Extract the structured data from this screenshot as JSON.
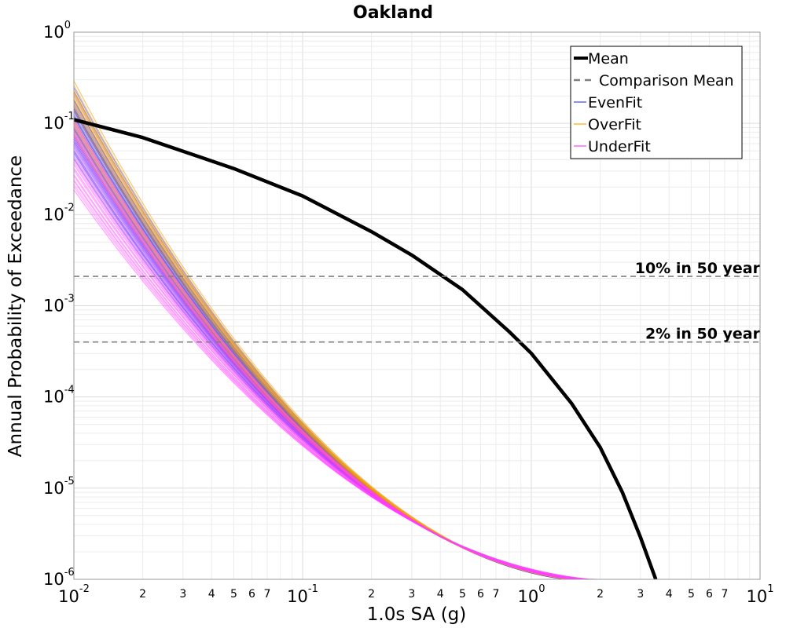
{
  "chart_data": {
    "type": "line",
    "title": "Oakland",
    "xlabel": "1.0s SA (g)",
    "ylabel": "Annual Probability of Exceedance",
    "x_scale": "log",
    "y_scale": "log",
    "xlim": [
      0.01,
      10
    ],
    "ylim": [
      1e-06,
      1
    ],
    "grid": true,
    "legend_position": "top-right",
    "x_ticks": {
      "major": [
        {
          "value": 0.01,
          "base": "10",
          "exp": "-2"
        },
        {
          "value": 0.1,
          "base": "10",
          "exp": "-1"
        },
        {
          "value": 1,
          "base": "10",
          "exp": "0"
        },
        {
          "value": 10,
          "base": "10",
          "exp": "1"
        }
      ],
      "minor": [
        {
          "value": 0.02,
          "label": "2"
        },
        {
          "value": 0.03,
          "label": "3"
        },
        {
          "value": 0.04,
          "label": "4"
        },
        {
          "value": 0.05,
          "label": "5"
        },
        {
          "value": 0.06,
          "label": "6"
        },
        {
          "value": 0.07,
          "label": "7"
        },
        {
          "value": 0.2,
          "label": "2"
        },
        {
          "value": 0.3,
          "label": "3"
        },
        {
          "value": 0.4,
          "label": "4"
        },
        {
          "value": 0.5,
          "label": "5"
        },
        {
          "value": 0.6,
          "label": "6"
        },
        {
          "value": 0.7,
          "label": "7"
        },
        {
          "value": 2,
          "label": "2"
        },
        {
          "value": 3,
          "label": "3"
        },
        {
          "value": 4,
          "label": "4"
        },
        {
          "value": 5,
          "label": "5"
        },
        {
          "value": 6,
          "label": "6"
        },
        {
          "value": 7,
          "label": "7"
        }
      ]
    },
    "y_ticks": [
      {
        "value": 1e-06,
        "base": "10",
        "exp": "-6"
      },
      {
        "value": 1e-05,
        "base": "10",
        "exp": "-5"
      },
      {
        "value": 0.0001,
        "base": "10",
        "exp": "-4"
      },
      {
        "value": 0.001,
        "base": "10",
        "exp": "-3"
      },
      {
        "value": 0.01,
        "base": "10",
        "exp": "-2"
      },
      {
        "value": 0.1,
        "base": "10",
        "exp": "-1"
      },
      {
        "value": 1,
        "base": "10",
        "exp": "0"
      }
    ],
    "series": [
      {
        "name": "Mean",
        "color": "#000000",
        "style": "solid-thick",
        "x": [
          0.01,
          0.02,
          0.05,
          0.1,
          0.2,
          0.3,
          0.5,
          0.8,
          1.0,
          1.5,
          2.0,
          2.5,
          3.0,
          3.5
        ],
        "y": [
          0.11,
          0.07,
          0.032,
          0.016,
          0.0065,
          0.0036,
          0.0015,
          0.00052,
          0.0003,
          8.5e-05,
          2.8e-05,
          9e-06,
          2.9e-06,
          9e-07
        ]
      },
      {
        "name": "Comparison Mean",
        "color": "#808080",
        "style": "dashed",
        "x": [],
        "y": []
      },
      {
        "name": "EvenFit",
        "color": "#4040ff",
        "style": "thin-band",
        "y_at_xmin_range": [
          0.04,
          0.26
        ],
        "x_at_ymin_range": [
          2.8,
          3.6
        ]
      },
      {
        "name": "OverFit",
        "color": "#ffa500",
        "style": "thin-band",
        "y_at_xmin_range": [
          0.07,
          0.3
        ],
        "x_at_ymin_range": [
          2.5,
          3.4
        ]
      },
      {
        "name": "UnderFit",
        "color": "#ff40ff",
        "style": "thin-band",
        "y_at_xmin_range": [
          0.018,
          0.12
        ],
        "x_at_ymin_range": [
          3.0,
          3.9
        ]
      }
    ],
    "reference_lines": [
      {
        "label": "10% in 50 year",
        "y": 0.0021,
        "color": "#808080",
        "style": "dashed"
      },
      {
        "label": "2% in 50 year",
        "y": 0.0004,
        "color": "#808080",
        "style": "dashed"
      }
    ]
  }
}
